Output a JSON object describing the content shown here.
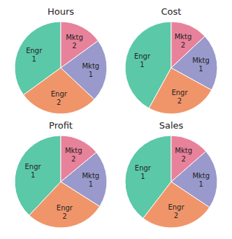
{
  "chart_data": [
    {
      "type": "pie",
      "title": "Hours",
      "categories": [
        "Engr\n1",
        "Engr\n2",
        "Mktg\n1",
        "Mktg\n2"
      ],
      "values": [
        35,
        28,
        22,
        15
      ],
      "colors": [
        "#5BC8A8",
        "#F0956A",
        "#9999CC",
        "#E8819A"
      ]
    },
    {
      "type": "pie",
      "title": "Cost",
      "categories": [
        "Engr\n1",
        "Engr\n2",
        "Mktg\n1",
        "Mktg\n2"
      ],
      "values": [
        42,
        25,
        20,
        13
      ],
      "colors": [
        "#5BC8A8",
        "#F0956A",
        "#9999CC",
        "#E8819A"
      ]
    },
    {
      "type": "pie",
      "title": "Profit",
      "categories": [
        "Engr\n1",
        "Engr\n2",
        "Mktg\n1",
        "Mktg\n2"
      ],
      "values": [
        38,
        28,
        20,
        14
      ],
      "colors": [
        "#5BC8A8",
        "#F0956A",
        "#9999CC",
        "#E8819A"
      ]
    },
    {
      "type": "pie",
      "title": "Sales",
      "categories": [
        "Engr\n1",
        "Engr\n2",
        "Mktg\n1",
        "Mktg\n2"
      ],
      "values": [
        38,
        25,
        20,
        13
      ],
      "colors": [
        "#5BC8A8",
        "#F0956A",
        "#9999CC",
        "#E8819A"
      ]
    }
  ]
}
